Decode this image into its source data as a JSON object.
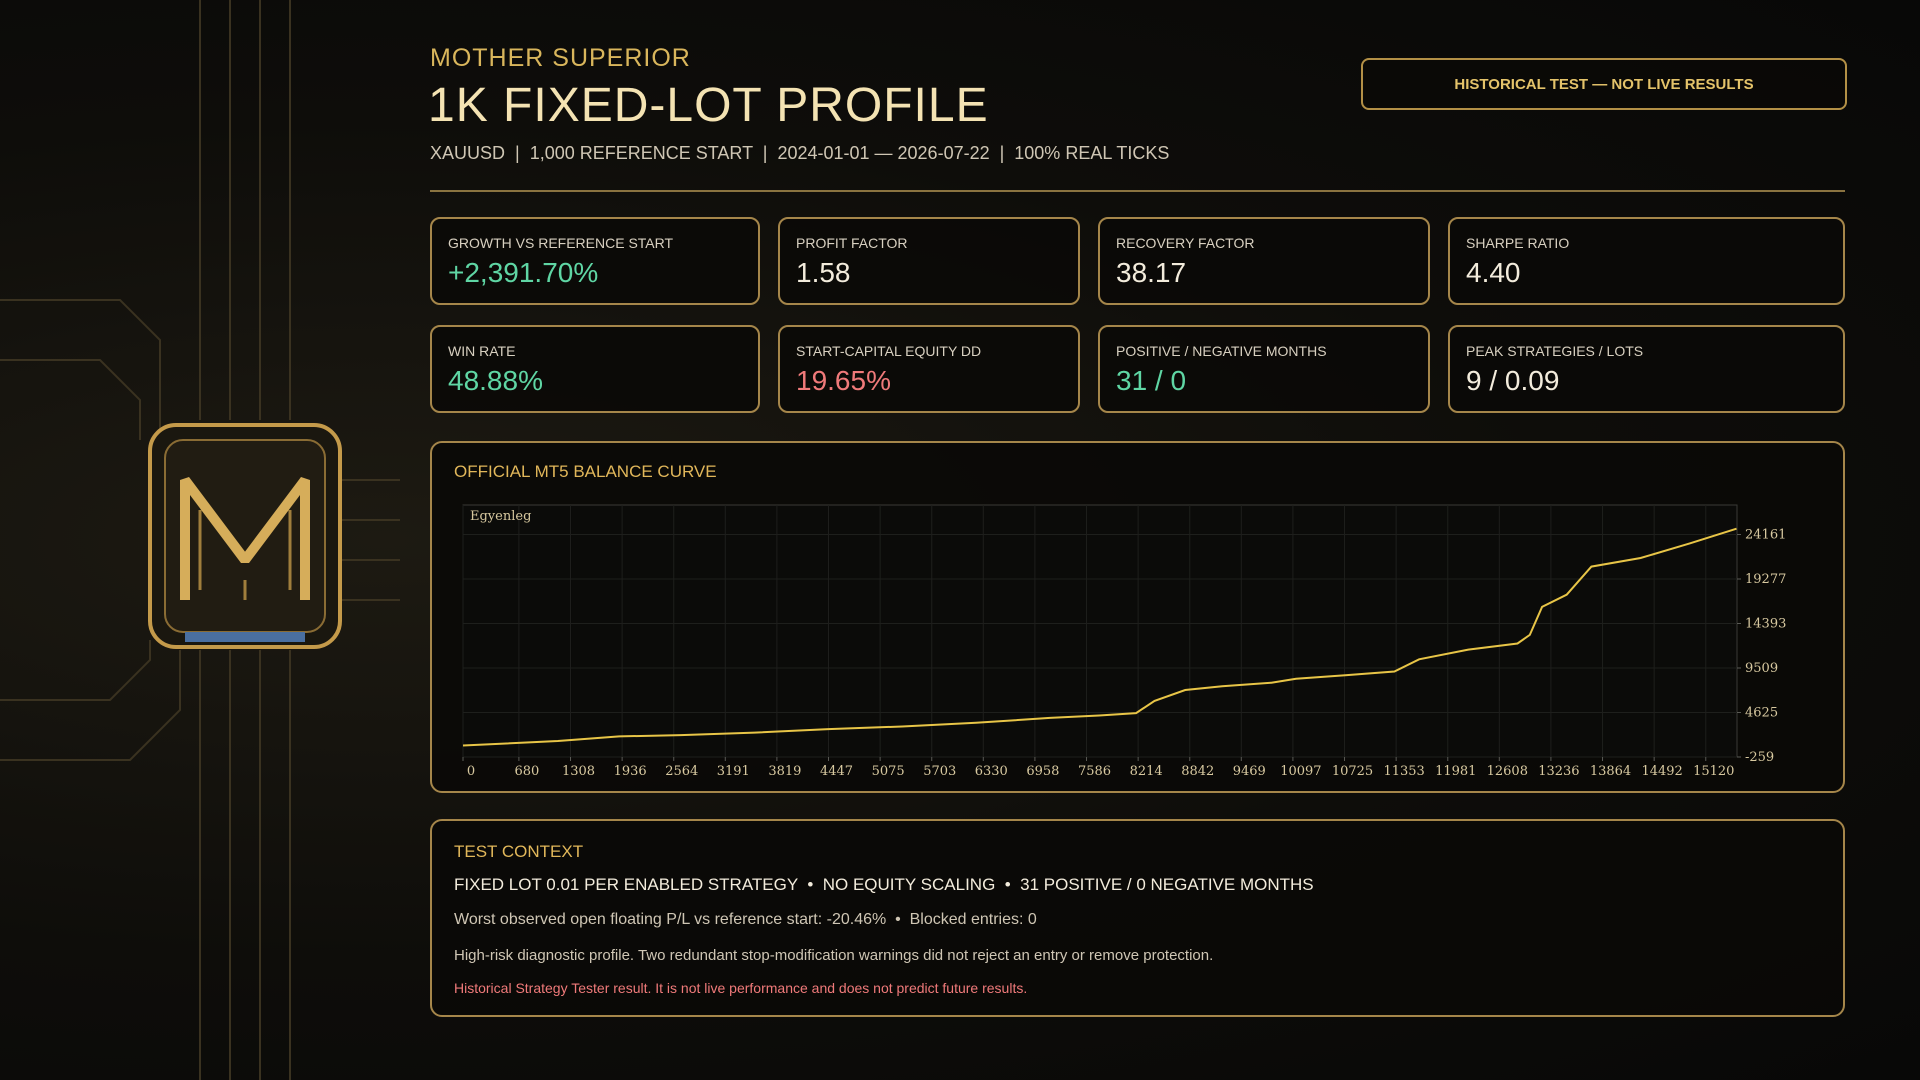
{
  "header": {
    "kicker": "MOTHER SUPERIOR",
    "title": "1K FIXED-LOT PROFILE",
    "subtitle": "XAUUSD  |  1,000 REFERENCE START  |  2024-01-01 — 2026-07-22  |  100% REAL TICKS",
    "badge": "HISTORICAL TEST — NOT LIVE RESULTS"
  },
  "stats": [
    {
      "label": "GROWTH VS REFERENCE START",
      "value": "+2,391.70%",
      "color": "#5fd6a4"
    },
    {
      "label": "PROFIT FACTOR",
      "value": "1.58",
      "color": "#f3ecdc"
    },
    {
      "label": "RECOVERY FACTOR",
      "value": "38.17",
      "color": "#f3ecdc"
    },
    {
      "label": "SHARPE RATIO",
      "value": "4.40",
      "color": "#f3ecdc"
    },
    {
      "label": "WIN RATE",
      "value": "48.88%",
      "color": "#5fd6a4"
    },
    {
      "label": "START-CAPITAL EQUITY DD",
      "value": "19.65%",
      "color": "#f07a7a"
    },
    {
      "label": "POSITIVE / NEGATIVE MONTHS",
      "value": "31 / 0",
      "color": "#5fd6a4"
    },
    {
      "label": "PEAK STRATEGIES / LOTS",
      "value": "9 / 0.09",
      "color": "#f3ecdc"
    }
  ],
  "chart_data": {
    "type": "line",
    "title": "OFFICIAL MT5 BALANCE CURVE",
    "grid": true,
    "xlim": [
      0,
      15500
    ],
    "xticks": [
      0,
      680,
      1308,
      1936,
      2564,
      3191,
      3819,
      4447,
      5075,
      5703,
      6330,
      6958,
      7586,
      8214,
      8842,
      9469,
      10097,
      10725,
      11353,
      11981,
      12608,
      13236,
      13864,
      14492,
      15120
    ],
    "ylim": [
      -259,
      27400
    ],
    "yticks": [
      -259,
      4625,
      9509,
      14393,
      19277,
      24161
    ],
    "series": [
      {
        "name": "Egyenleg",
        "color": "#e8c547",
        "x": [
          0,
          1153,
          1901,
          2650,
          3548,
          4446,
          5344,
          6243,
          7141,
          7740,
          8189,
          8413,
          8787,
          9237,
          9835,
          10135,
          10734,
          11332,
          11632,
          12231,
          12829,
          12979,
          13129,
          13428,
          13728,
          14327,
          14925,
          15494
        ],
        "values": [
          1000,
          1500,
          2000,
          2150,
          2420,
          2800,
          3090,
          3500,
          4030,
          4300,
          4560,
          5900,
          7100,
          7500,
          7900,
          8320,
          8720,
          9120,
          10460,
          11530,
          12200,
          13140,
          16220,
          17560,
          20640,
          21580,
          23190,
          24800
        ]
      }
    ]
  },
  "context": {
    "title": "TEST CONTEXT",
    "line1": "FIXED LOT 0.01 PER ENABLED STRATEGY  •  NO EQUITY SCALING  •  31 POSITIVE / 0 NEGATIVE MONTHS",
    "line2": "Worst observed open floating P/L vs reference start: -20.46%  •  Blocked entries: 0",
    "line3": "High-risk diagnostic profile. Two redundant stop-modification warnings did not reject an entry or remove protection.",
    "line4": "Historical Strategy Tester result. It is not live performance and does not predict future results."
  }
}
